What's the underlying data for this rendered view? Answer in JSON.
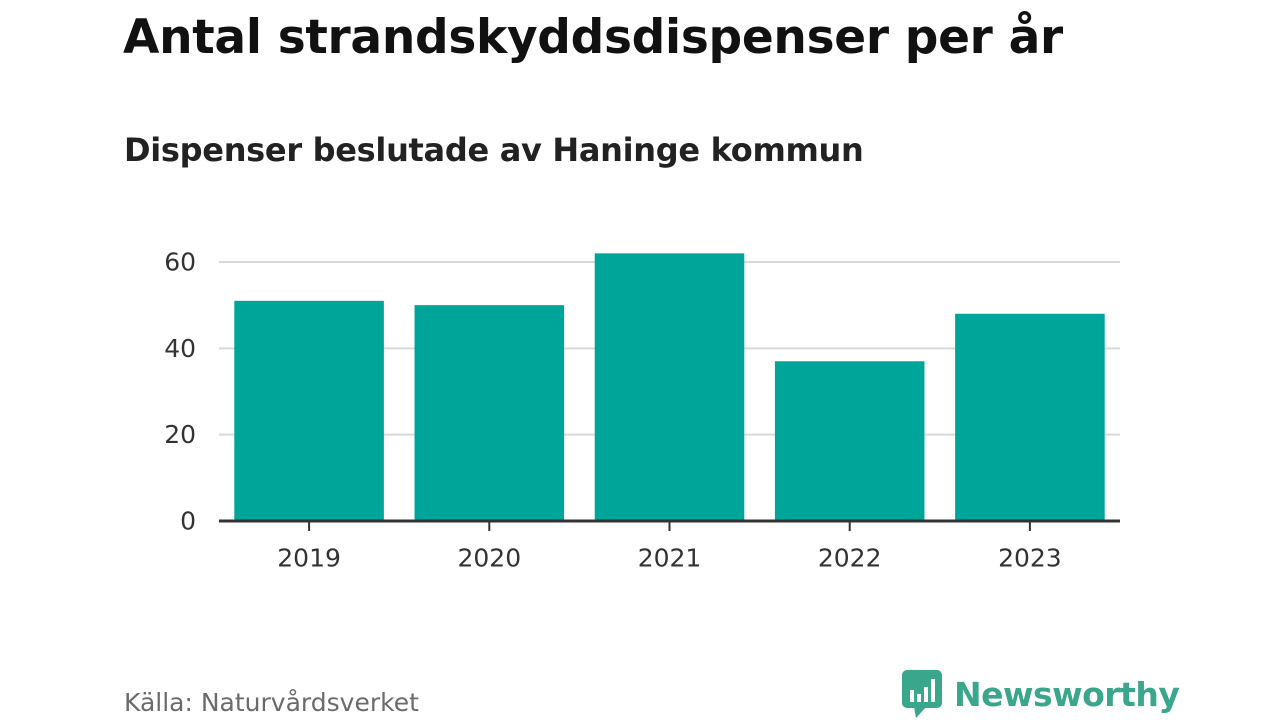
{
  "title": "Antal strandskyddsdispenser per år",
  "subtitle": "Dispenser beslutade av Haninge kommun",
  "source": "Källa: Naturvårdsverket",
  "brand": {
    "name": "Newsworthy",
    "icon": "newsworthy-logo-icon",
    "color": "#3aa68c"
  },
  "colors": {
    "bar": "#00a59a",
    "grid": "#d9d9d9",
    "axis": "#333333",
    "tick_text": "#333333"
  },
  "chart_data": {
    "type": "bar",
    "categories": [
      "2019",
      "2020",
      "2021",
      "2022",
      "2023"
    ],
    "values": [
      51,
      50,
      62,
      37,
      48
    ],
    "title": "Antal strandskyddsdispenser per år",
    "subtitle": "Dispenser beslutade av Haninge kommun",
    "xlabel": "",
    "ylabel": "",
    "ylim": [
      0,
      62
    ],
    "yticks": [
      0,
      20,
      40,
      60
    ],
    "grid": true,
    "legend": "none"
  }
}
